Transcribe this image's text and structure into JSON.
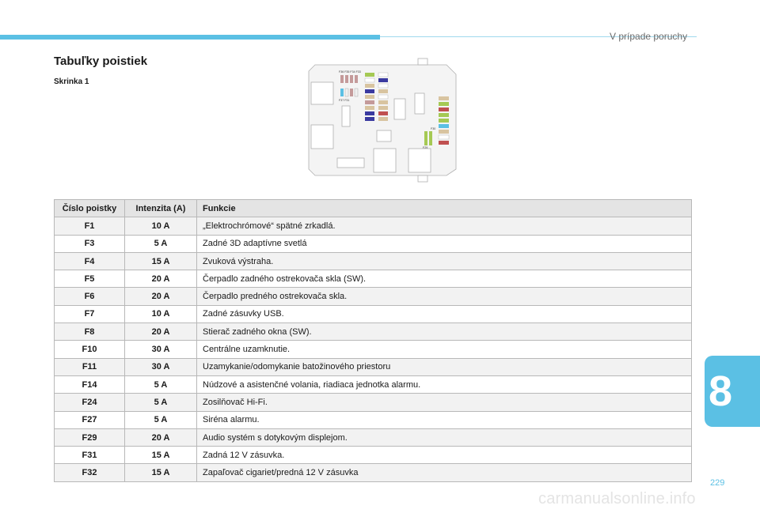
{
  "header": {
    "section_title": "V prípade poruchy"
  },
  "title": "Tabuľky poistiek",
  "subtitle": "Skrinka 1",
  "chapter_number": "8",
  "page_number": "229",
  "watermark": "carmanualsonline.info",
  "colors": {
    "accent": "#5bc0e4"
  },
  "diagram": {
    "labels_top": "F36 F35 F34 F33",
    "labels_left": "F37 F31",
    "label_right_top": "F30",
    "label_right_bottom": "F29"
  },
  "table": {
    "headers": [
      "Číslo poistky",
      "Intenzita (A)",
      "Funkcie"
    ],
    "rows": [
      {
        "fuse": "F1",
        "amp": "10 A",
        "func": "„Elektrochrómové“ spätné zrkadlá."
      },
      {
        "fuse": "F3",
        "amp": "5 A",
        "func": "Zadné 3D adaptívne svetlá"
      },
      {
        "fuse": "F4",
        "amp": "15 A",
        "func": "Zvuková výstraha."
      },
      {
        "fuse": "F5",
        "amp": "20 A",
        "func": "Čerpadlo zadného ostrekovača skla (SW)."
      },
      {
        "fuse": "F6",
        "amp": "20 A",
        "func": "Čerpadlo predného ostrekovača skla."
      },
      {
        "fuse": "F7",
        "amp": "10 A",
        "func": "Zadné zásuvky USB."
      },
      {
        "fuse": "F8",
        "amp": "20 A",
        "func": "Stierač zadného okna (SW)."
      },
      {
        "fuse": "F10",
        "amp": "30 A",
        "func": "Centrálne uzamknutie."
      },
      {
        "fuse": "F11",
        "amp": "30 A",
        "func": "Uzamykanie/odomykanie batožinového priestoru"
      },
      {
        "fuse": "F14",
        "amp": "5 A",
        "func": "Núdzové a asistenčné volania, riadiaca jednotka alarmu."
      },
      {
        "fuse": "F24",
        "amp": "5 A",
        "func": "Zosilňovač Hi-Fi."
      },
      {
        "fuse": "F27",
        "amp": "5 A",
        "func": "Siréna alarmu."
      },
      {
        "fuse": "F29",
        "amp": "20 A",
        "func": "Audio systém s dotykovým displejom."
      },
      {
        "fuse": "F31",
        "amp": "15 A",
        "func": "Zadná 12 V zásuvka."
      },
      {
        "fuse": "F32",
        "amp": "15 A",
        "func": "Zapaľovač cigariet/predná 12 V zásuvka"
      }
    ]
  }
}
